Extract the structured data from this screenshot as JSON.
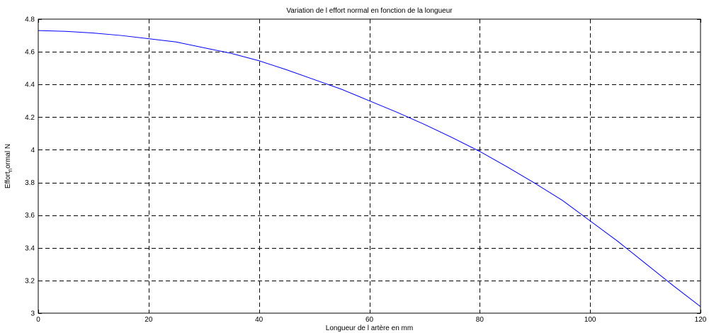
{
  "chart_data": {
    "type": "line",
    "title": "Variation de l effort normal en fonction de la longueur",
    "xlabel": "Longueur de l artère en mm",
    "ylabel_main": "Effort",
    "ylabel_sub": "n",
    "ylabel_rest": "ormal N",
    "xlim": [
      0,
      120
    ],
    "ylim": [
      3,
      4.8
    ],
    "xticks": [
      0,
      20,
      40,
      60,
      80,
      100,
      120
    ],
    "yticks": [
      3,
      3.2,
      3.4,
      3.6,
      3.8,
      4,
      4.2,
      4.4,
      4.6,
      4.8
    ],
    "xtick_labels": [
      "0",
      "20",
      "40",
      "60",
      "80",
      "100",
      "120"
    ],
    "ytick_labels": [
      "3",
      "3.2",
      "3.4",
      "3.6",
      "3.8",
      "4",
      "4.2",
      "4.4",
      "4.6",
      "4.8"
    ],
    "grid": true,
    "grid_style": "dashed",
    "line_color": "#0000ff",
    "series": [
      {
        "x": [
          0,
          5,
          10,
          15,
          20,
          25,
          30,
          35,
          40,
          45,
          50,
          55,
          60,
          65,
          70,
          75,
          80,
          85,
          90,
          95,
          100,
          105,
          110,
          115,
          120
        ],
        "y": [
          4.73,
          4.725,
          4.715,
          4.7,
          4.68,
          4.66,
          4.625,
          4.59,
          4.545,
          4.49,
          4.43,
          4.37,
          4.3,
          4.23,
          4.155,
          4.075,
          3.99,
          3.895,
          3.795,
          3.69,
          3.565,
          3.44,
          3.305,
          3.17,
          3.04
        ]
      }
    ]
  }
}
